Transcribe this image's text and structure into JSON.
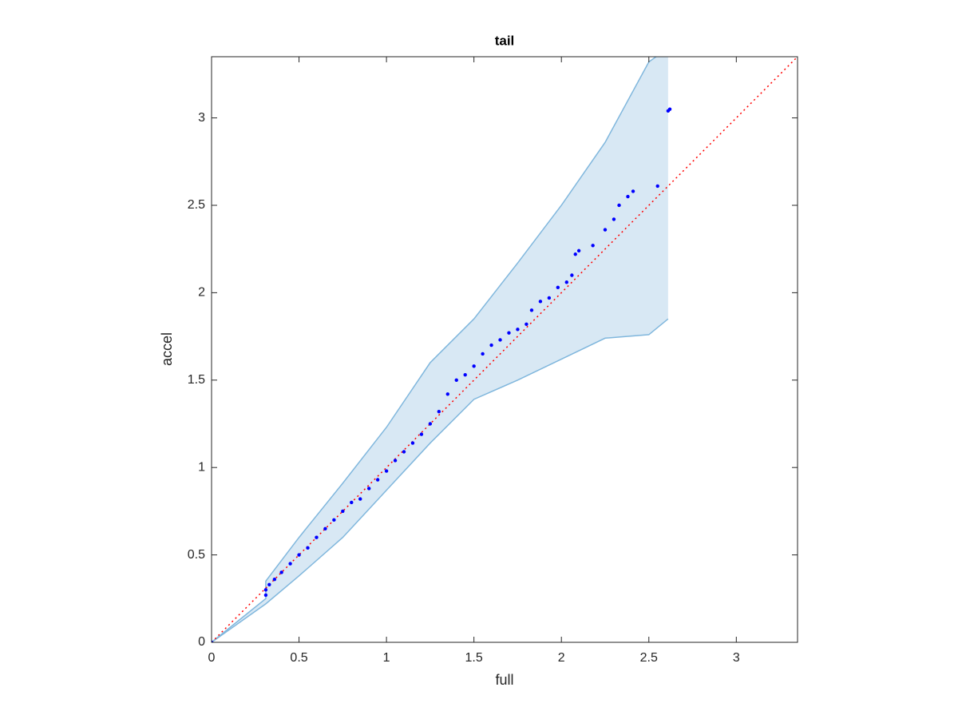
{
  "chart_data": {
    "type": "scatter",
    "title": "tail",
    "x_label": "full",
    "y_label": "accel",
    "xlim": [
      0,
      3.35
    ],
    "ylim": [
      0,
      3.35
    ],
    "xticks": [
      0,
      0.5,
      1,
      1.5,
      2,
      2.5,
      3
    ],
    "yticks": [
      0,
      0.5,
      1,
      1.5,
      2,
      2.5,
      3
    ],
    "color": "#0000ff",
    "x": [
      0,
      0.31,
      0.31,
      0.33,
      0.36,
      0.4,
      0.45,
      0.5,
      0.55,
      0.6,
      0.65,
      0.7,
      0.75,
      0.8,
      0.85,
      0.9,
      0.95,
      1.0,
      1.05,
      1.1,
      1.15,
      1.2,
      1.25,
      1.3,
      1.35,
      1.4,
      1.45,
      1.5,
      1.55,
      1.6,
      1.65,
      1.7,
      1.75,
      1.8,
      1.83,
      1.88,
      1.93,
      1.98,
      2.03,
      2.06,
      2.08,
      2.1,
      2.18,
      2.25,
      2.3,
      2.33,
      2.38,
      2.41,
      2.55,
      2.61,
      2.62
    ],
    "values": [
      0,
      0.27,
      0.3,
      0.33,
      0.36,
      0.4,
      0.45,
      0.5,
      0.54,
      0.6,
      0.65,
      0.7,
      0.75,
      0.8,
      0.82,
      0.88,
      0.93,
      0.98,
      1.04,
      1.09,
      1.14,
      1.19,
      1.25,
      1.32,
      1.42,
      1.5,
      1.53,
      1.58,
      1.65,
      1.7,
      1.73,
      1.77,
      1.79,
      1.82,
      1.9,
      1.95,
      1.97,
      2.03,
      2.06,
      2.1,
      2.22,
      2.24,
      2.27,
      2.36,
      2.42,
      2.5,
      2.55,
      2.58,
      2.61,
      3.04,
      3.05
    ],
    "band": {
      "color": "#d8e8f4",
      "edge_color": "#80b7dd",
      "x": [
        0,
        0.31,
        0.31,
        0.5,
        0.75,
        1.0,
        1.25,
        1.5,
        1.75,
        2.0,
        2.25,
        2.5,
        2.61
      ],
      "lower": [
        0,
        0.22,
        0.22,
        0.38,
        0.6,
        0.87,
        1.14,
        1.39,
        1.5,
        1.62,
        1.74,
        1.76,
        1.85
      ],
      "upper": [
        0,
        0.25,
        0.35,
        0.6,
        0.91,
        1.23,
        1.6,
        1.85,
        2.17,
        2.5,
        2.86,
        3.32,
        3.4
      ]
    },
    "reference_line": {
      "color": "#ff0000",
      "x": [
        0,
        3.35
      ],
      "values": [
        0,
        3.35
      ]
    },
    "grid": false
  }
}
